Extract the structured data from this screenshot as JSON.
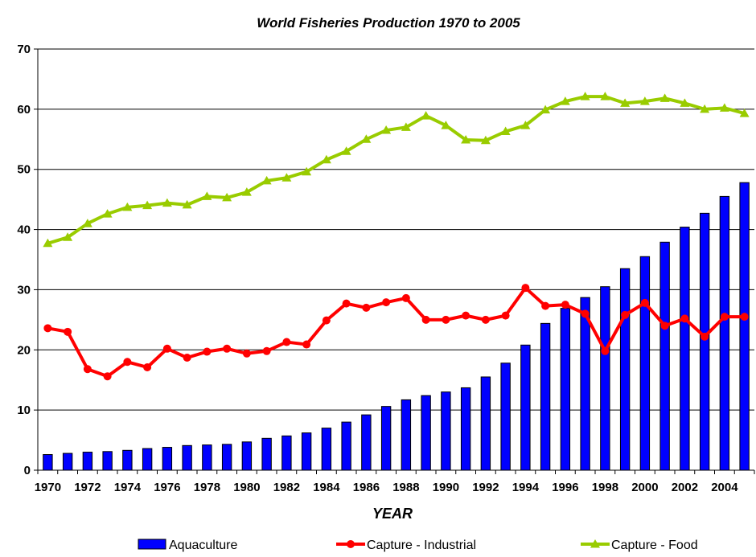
{
  "chart_data": {
    "type": "bar",
    "title": "World Fisheries Production 1970 to 2005",
    "xlabel": "YEAR",
    "ylabel": "",
    "ylim": [
      0,
      70
    ],
    "yticks": [
      0,
      10,
      20,
      30,
      40,
      50,
      60,
      70
    ],
    "grid": "horizontal",
    "legend_position": "bottom",
    "x": [
      1970,
      1971,
      1972,
      1973,
      1974,
      1975,
      1976,
      1977,
      1978,
      1979,
      1980,
      1981,
      1982,
      1983,
      1984,
      1985,
      1986,
      1987,
      1988,
      1989,
      1990,
      1991,
      1992,
      1993,
      1994,
      1995,
      1996,
      1997,
      1998,
      1999,
      2000,
      2001,
      2002,
      2003,
      2004,
      2005
    ],
    "x_tick_labels": [
      "1970",
      "1972",
      "1974",
      "1976",
      "1978",
      "1980",
      "1982",
      "1984",
      "1986",
      "1988",
      "1990",
      "1992",
      "1994",
      "1996",
      "1998",
      "2000",
      "2002",
      "2004"
    ],
    "series": [
      {
        "name": "Aquaculture",
        "kind": "bar",
        "color": "#0000ff",
        "values": [
          2.6,
          2.8,
          3.0,
          3.1,
          3.3,
          3.6,
          3.8,
          4.1,
          4.2,
          4.3,
          4.7,
          5.3,
          5.7,
          6.2,
          7.0,
          8.0,
          9.2,
          10.6,
          11.7,
          12.4,
          13.0,
          13.7,
          15.5,
          17.8,
          20.8,
          24.4,
          26.9,
          28.7,
          30.5,
          33.5,
          35.5,
          37.9,
          40.4,
          42.7,
          45.5,
          47.8
        ]
      },
      {
        "name": "Capture - Industrial",
        "kind": "line",
        "marker": "circle",
        "color": "#ff0000",
        "values": [
          23.6,
          23.0,
          16.8,
          15.6,
          18.0,
          17.1,
          20.2,
          18.7,
          19.7,
          20.2,
          19.4,
          19.8,
          21.3,
          20.9,
          24.9,
          27.7,
          27.0,
          27.9,
          28.6,
          25.0,
          25.0,
          25.7,
          25.0,
          25.7,
          30.3,
          27.3,
          27.5,
          26.0,
          19.8,
          25.8,
          27.8,
          24.0,
          25.2,
          22.2,
          25.5,
          25.5
        ]
      },
      {
        "name": "Capture - Food",
        "kind": "line",
        "marker": "triangle",
        "color": "#99cc00",
        "values": [
          37.7,
          38.7,
          41.0,
          42.6,
          43.7,
          44.0,
          44.4,
          44.1,
          45.5,
          45.3,
          46.2,
          48.1,
          48.6,
          49.6,
          51.6,
          53.0,
          55.0,
          56.5,
          57.0,
          58.9,
          57.3,
          54.9,
          54.8,
          56.3,
          57.3,
          59.9,
          61.3,
          62.1,
          62.1,
          61.0,
          61.3,
          61.8,
          61.0,
          60.0,
          60.2,
          59.3
        ]
      }
    ]
  }
}
